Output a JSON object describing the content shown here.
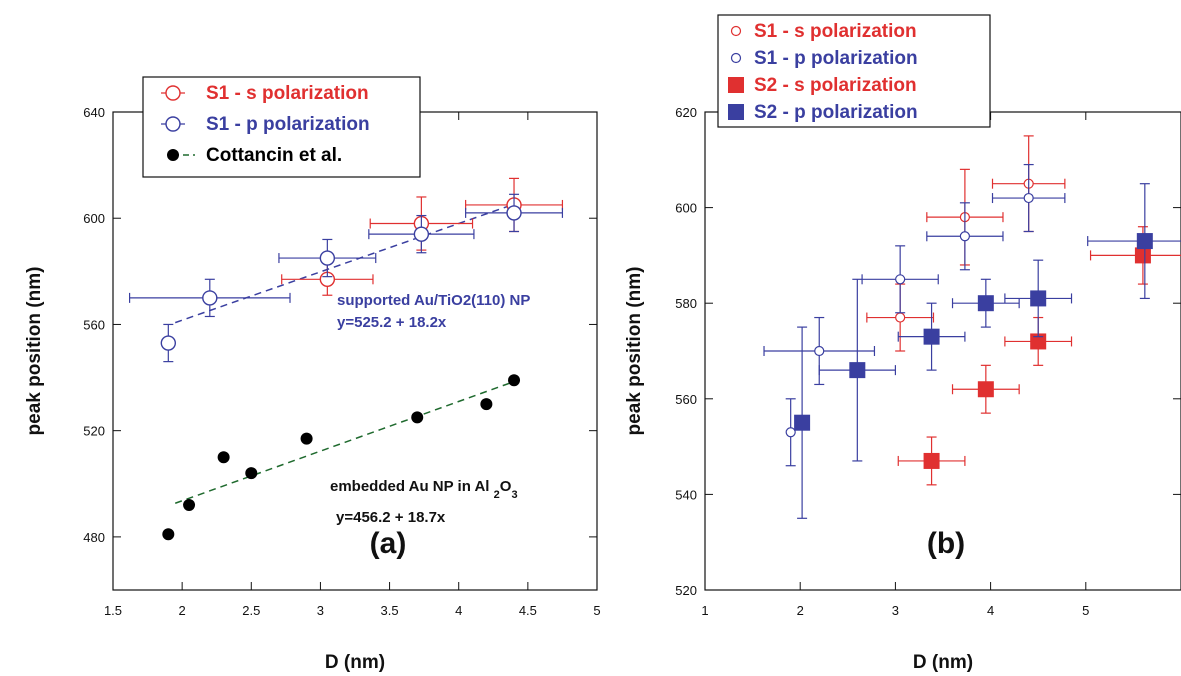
{
  "colors": {
    "red": "#e03030",
    "blue": "#3a3fa0",
    "black": "#000000",
    "green": "#1f6a2e"
  },
  "chart_data": [
    {
      "type": "scatter",
      "title": "",
      "xlabel": "D (nm)",
      "ylabel": "peak position (nm)",
      "xlim": [
        1.5,
        5
      ],
      "ylim": [
        460,
        640
      ],
      "xticks": [
        1.5,
        2,
        2.5,
        3,
        3.5,
        4,
        4.5,
        5
      ],
      "yticks": [
        480,
        520,
        560,
        600,
        640
      ],
      "xtick_labels": [
        "1.5",
        "2",
        "2.5",
        "3",
        "3.5",
        "4",
        "4.5",
        "5"
      ],
      "ytick_labels": [
        "480",
        "520",
        "560",
        "600",
        "640"
      ],
      "grid": false,
      "legend_position": "top-center",
      "panel_label": "(a)",
      "series": [
        {
          "name": "S1 - s polarization",
          "color": "#e03030",
          "marker": "open-circle",
          "points": [
            {
              "x": 3.05,
              "y": 577,
              "xerr": 0.33,
              "yerr": 6
            },
            {
              "x": 3.73,
              "y": 598,
              "xerr": 0.37,
              "yerr": 10
            },
            {
              "x": 4.4,
              "y": 605,
              "xerr": 0.35,
              "yerr": 10
            }
          ]
        },
        {
          "name": "S1 -  p polarization",
          "color": "#3a3fa0",
          "marker": "open-circle",
          "points": [
            {
              "x": 1.9,
              "y": 553,
              "xerr": 0,
              "yerr": 7
            },
            {
              "x": 2.2,
              "y": 570,
              "xerr": 0.58,
              "yerr": 7
            },
            {
              "x": 3.05,
              "y": 585,
              "xerr": 0.35,
              "yerr": 7
            },
            {
              "x": 3.73,
              "y": 594,
              "xerr": 0.38,
              "yerr": 7
            },
            {
              "x": 4.4,
              "y": 602,
              "xerr": 0.35,
              "yerr": 7
            }
          ]
        },
        {
          "name": "Cottancin et al.",
          "color": "#000000",
          "marker": "filled-circle",
          "points": [
            {
              "x": 1.9,
              "y": 481
            },
            {
              "x": 2.05,
              "y": 492
            },
            {
              "x": 2.3,
              "y": 510
            },
            {
              "x": 2.5,
              "y": 504
            },
            {
              "x": 2.9,
              "y": 517
            },
            {
              "x": 3.7,
              "y": 525
            },
            {
              "x": 4.2,
              "y": 530
            },
            {
              "x": 4.4,
              "y": 539
            }
          ]
        }
      ],
      "fit_lines": [
        {
          "color": "#3a3fa0",
          "x": [
            1.95,
            4.4
          ],
          "intercept": 525.2,
          "slope": 18.2
        },
        {
          "color": "#1f6a2e",
          "x": [
            1.95,
            4.4
          ],
          "intercept": 456.2,
          "slope": 18.7
        }
      ],
      "annotations": [
        {
          "text": "supported Au/TiO2(110) NP",
          "color": "#3a3fa0"
        },
        {
          "text": "y=525.2 + 18.2x",
          "color": "#3a3fa0"
        },
        {
          "text": "embedded Au NP in Al",
          "sub1": "2",
          "mid": "O",
          "sub2": "3",
          "color": "#111111"
        },
        {
          "text": "y=456.2 + 18.7x",
          "color": "#111111"
        }
      ]
    },
    {
      "type": "scatter",
      "title": "",
      "xlabel": "D (nm)",
      "ylabel": "peak position (nm)",
      "xlim": [
        1,
        6
      ],
      "ylim": [
        520,
        620
      ],
      "xticks": [
        1,
        2,
        3,
        4,
        5
      ],
      "yticks": [
        520,
        540,
        560,
        580,
        600,
        620
      ],
      "xtick_labels": [
        "1",
        "2",
        "3",
        "4",
        "5"
      ],
      "ytick_labels": [
        "520",
        "540",
        "560",
        "580",
        "600",
        "620"
      ],
      "grid": false,
      "legend_position": "top-left",
      "panel_label": "(b)",
      "series": [
        {
          "name": "S1 - s polarization",
          "color": "#e03030",
          "marker": "small-open-circle",
          "points": [
            {
              "x": 3.05,
              "y": 577,
              "xerr": 0.35,
              "yerr": 7
            },
            {
              "x": 3.73,
              "y": 598,
              "xerr": 0.4,
              "yerr": 10
            },
            {
              "x": 4.4,
              "y": 605,
              "xerr": 0.38,
              "yerr": 10
            }
          ]
        },
        {
          "name": "S1 - p polarization",
          "color": "#3a3fa0",
          "marker": "small-open-circle",
          "points": [
            {
              "x": 1.9,
              "y": 553,
              "xerr": 0,
              "yerr": 7
            },
            {
              "x": 2.2,
              "y": 570,
              "xerr": 0.58,
              "yerr": 7
            },
            {
              "x": 3.05,
              "y": 585,
              "xerr": 0.4,
              "yerr": 7
            },
            {
              "x": 3.73,
              "y": 594,
              "xerr": 0.4,
              "yerr": 7
            },
            {
              "x": 4.4,
              "y": 602,
              "xerr": 0.38,
              "yerr": 7
            }
          ]
        },
        {
          "name": "S2 - s polarization",
          "color": "#e03030",
          "marker": "filled-square",
          "points": [
            {
              "x": 3.38,
              "y": 547,
              "xerr": 0.35,
              "yerr": 5
            },
            {
              "x": 3.95,
              "y": 562,
              "xerr": 0.35,
              "yerr": 5
            },
            {
              "x": 4.5,
              "y": 572,
              "xerr": 0.35,
              "yerr": 5
            },
            {
              "x": 5.6,
              "y": 590,
              "xerr": 0.55,
              "yerr": 6
            }
          ]
        },
        {
          "name": "S2 - p polarization",
          "color": "#3a3fa0",
          "marker": "filled-square",
          "points": [
            {
              "x": 2.02,
              "y": 555,
              "xerr": 0,
              "yerr": 20
            },
            {
              "x": 2.6,
              "y": 566,
              "xerr": 0.4,
              "yerr": 19
            },
            {
              "x": 3.38,
              "y": 573,
              "xerr": 0.35,
              "yerr": 7
            },
            {
              "x": 3.95,
              "y": 580,
              "xerr": 0.35,
              "yerr": 5
            },
            {
              "x": 4.5,
              "y": 581,
              "xerr": 0.35,
              "yerr": 8
            },
            {
              "x": 5.62,
              "y": 593,
              "xerr": 0.6,
              "yerr": 12
            }
          ]
        }
      ]
    }
  ]
}
